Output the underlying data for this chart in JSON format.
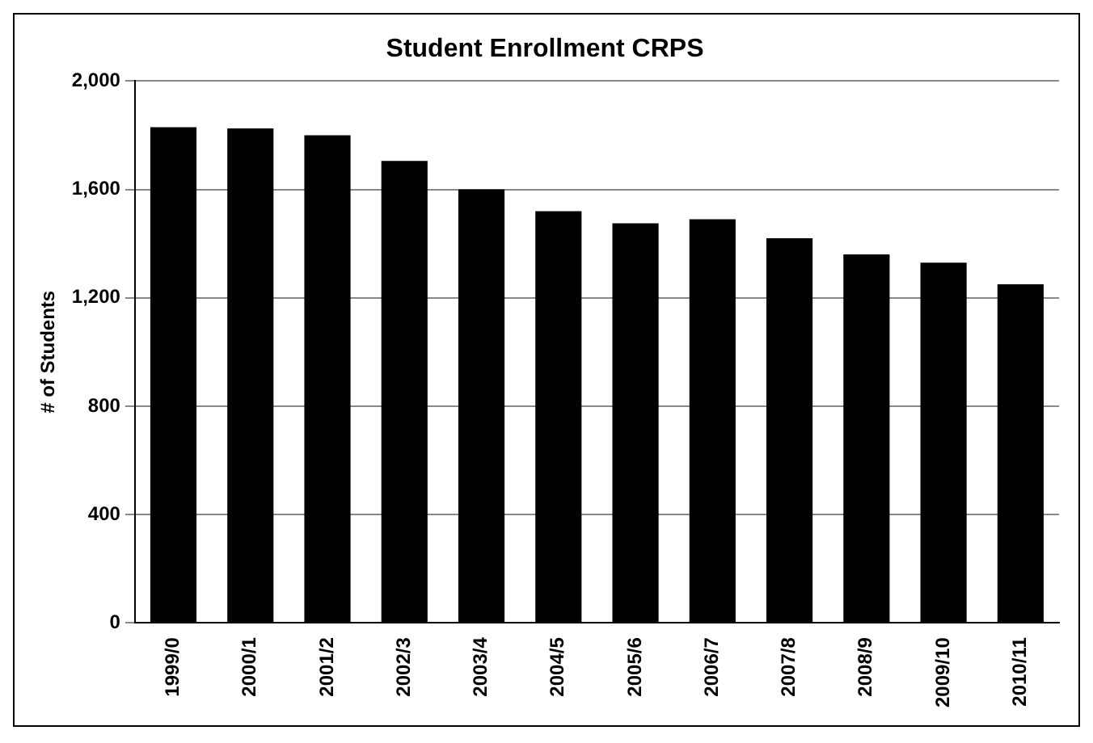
{
  "chart_data": {
    "type": "bar",
    "title": "Student Enrollment CRPS",
    "ylabel": "# of Students",
    "categories": [
      "1999/0",
      "2000/1",
      "2001/2",
      "2002/3",
      "2003/4",
      "2004/5",
      "2005/6",
      "2006/7",
      "2007/8",
      "2008/9",
      "2009/10",
      "2010/11"
    ],
    "values": [
      1830,
      1825,
      1800,
      1705,
      1600,
      1520,
      1475,
      1490,
      1420,
      1360,
      1330,
      1250
    ],
    "color": "#000000",
    "ylim": [
      0,
      2000
    ],
    "yticks": [
      {
        "value": 0,
        "label": "0"
      },
      {
        "value": 400,
        "label": "400"
      },
      {
        "value": 800,
        "label": "800"
      },
      {
        "value": 1200,
        "label": "1,200"
      },
      {
        "value": 1600,
        "label": "1,600"
      },
      {
        "value": 2000,
        "label": "2,000"
      }
    ],
    "grid": "y",
    "legend": false
  }
}
